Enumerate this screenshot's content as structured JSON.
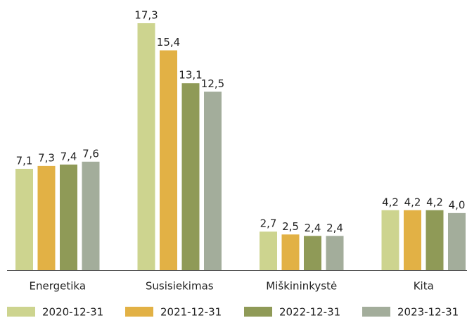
{
  "chart_data": {
    "type": "bar",
    "categories": [
      "Energetika",
      "Susisiekimas",
      "Miškininkystė",
      "Kita"
    ],
    "series": [
      {
        "name": "2020-12-31",
        "color": "#cdd48f",
        "values": [
          7.1,
          17.3,
          2.7,
          4.2
        ],
        "value_labels": [
          "7,1",
          "17,3",
          "2,7",
          "4,2"
        ]
      },
      {
        "name": "2021-12-31",
        "color": "#e2b145",
        "values": [
          7.3,
          15.4,
          2.5,
          4.2
        ],
        "value_labels": [
          "7,3",
          "15,4",
          "2,5",
          "4,2"
        ]
      },
      {
        "name": "2022-12-31",
        "color": "#8f9a57",
        "values": [
          7.4,
          13.1,
          2.4,
          4.2
        ],
        "value_labels": [
          "7,4",
          "13,1",
          "2,4",
          "4,2"
        ]
      },
      {
        "name": "2023-12-31",
        "color": "#a3ad9b",
        "values": [
          7.6,
          12.5,
          2.4,
          4.0
        ],
        "value_labels": [
          "7,6",
          "12,5",
          "2,4",
          "4,0"
        ]
      }
    ]
  }
}
